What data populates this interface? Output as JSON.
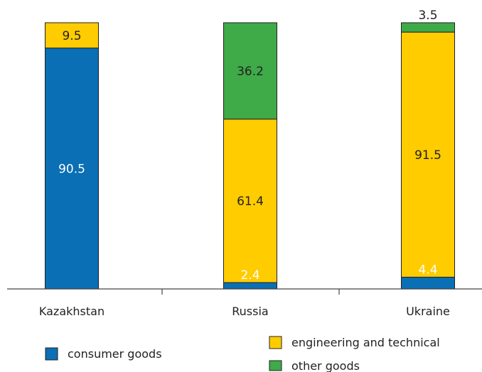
{
  "chart_data": {
    "type": "bar",
    "stacked": true,
    "percent_stacked": true,
    "categories": [
      "Kazakhstan",
      "Russia",
      "Ukraine"
    ],
    "series": [
      {
        "name": "consumer goods",
        "color": "#0a6fb4",
        "values": [
          90.5,
          2.4,
          4.4
        ]
      },
      {
        "name": "engineering and technical",
        "color": "#ffcc00",
        "values": [
          9.5,
          61.4,
          91.5
        ]
      },
      {
        "name": "other goods",
        "color": "#3faa48",
        "values": [
          0,
          36.2,
          3.5
        ]
      }
    ],
    "data_labels": [
      [
        "90.5",
        "2.4",
        "4.4"
      ],
      [
        "9.5",
        "61.4",
        "91.5"
      ],
      [
        "",
        "36.2",
        "3.5"
      ]
    ],
    "ylim": [
      0,
      100
    ],
    "grid": false,
    "legend_position": "bottom"
  }
}
